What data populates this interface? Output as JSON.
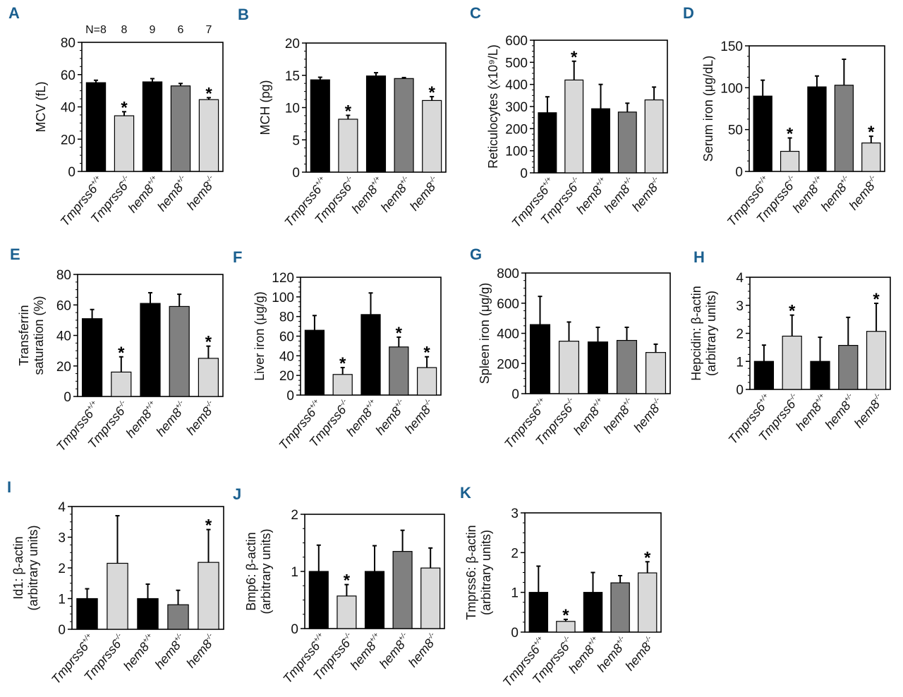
{
  "figure": {
    "categories": [
      {
        "name": "Tmprss6",
        "sup": "+/+"
      },
      {
        "name": "Tmprss6",
        "sup": "-/-"
      },
      {
        "name": "hem8",
        "sup": "+/+"
      },
      {
        "name": "hem8",
        "sup": "+/-"
      },
      {
        "name": "hem8",
        "sup": "-/-"
      }
    ],
    "bar_colors": [
      "#000000",
      "#d9d9d9",
      "#000000",
      "#808080",
      "#d9d9d9"
    ],
    "accent_label_color": "#1a5f8f"
  },
  "chart_data": [
    {
      "panel": "A",
      "type": "bar",
      "ylabel": [
        "MCV (fL)"
      ],
      "ylim": [
        0,
        80
      ],
      "yticks": [
        0,
        20,
        40,
        60,
        80
      ],
      "values": [
        55,
        34.5,
        55.5,
        53,
        44.5
      ],
      "errors": [
        1.5,
        2.5,
        2,
        1.5,
        1.2
      ],
      "significant": [
        false,
        true,
        false,
        false,
        true
      ],
      "n_labels": [
        "N=8",
        "8",
        "9",
        "6",
        "7"
      ]
    },
    {
      "panel": "B",
      "type": "bar",
      "ylabel": [
        "MCH (pg)"
      ],
      "ylim": [
        0,
        20
      ],
      "yticks": [
        0,
        5,
        10,
        15,
        20
      ],
      "values": [
        14.3,
        8.2,
        14.9,
        14.5,
        11.1
      ],
      "errors": [
        0.4,
        0.6,
        0.5,
        0.15,
        0.6
      ],
      "significant": [
        false,
        true,
        false,
        false,
        true
      ]
    },
    {
      "panel": "C",
      "type": "bar",
      "ylabel": [
        "Reticulocytes (x10⁹/L)"
      ],
      "ylim": [
        0,
        600
      ],
      "yticks": [
        0,
        100,
        200,
        300,
        400,
        500,
        600
      ],
      "values": [
        272,
        420,
        290,
        275,
        330
      ],
      "errors": [
        72,
        85,
        110,
        40,
        58
      ],
      "significant": [
        false,
        true,
        false,
        false,
        false
      ]
    },
    {
      "panel": "D",
      "type": "bar",
      "ylabel": [
        "Serum iron (μg/dL)"
      ],
      "ylim": [
        0,
        150
      ],
      "yticks": [
        0,
        50,
        100,
        150
      ],
      "values": [
        90,
        24,
        101,
        103,
        34
      ],
      "errors": [
        19,
        16,
        13,
        31,
        8
      ],
      "significant": [
        false,
        true,
        false,
        false,
        true
      ]
    },
    {
      "panel": "E",
      "type": "bar",
      "ylabel": [
        "Transferrin",
        "saturation (%)"
      ],
      "ylim": [
        0,
        80
      ],
      "yticks": [
        0,
        20,
        40,
        60,
        80
      ],
      "values": [
        51,
        16,
        61,
        59,
        25
      ],
      "errors": [
        6,
        10,
        7,
        8,
        8
      ],
      "significant": [
        false,
        true,
        false,
        false,
        true
      ]
    },
    {
      "panel": "F",
      "type": "bar",
      "ylabel": [
        "Liver iron (μg/g)"
      ],
      "ylim": [
        0,
        120
      ],
      "yticks": [
        0,
        20,
        40,
        60,
        80,
        100,
        120
      ],
      "values": [
        66,
        21,
        82,
        49,
        28
      ],
      "errors": [
        15,
        7,
        22,
        10,
        11
      ],
      "significant": [
        false,
        true,
        false,
        true,
        true
      ]
    },
    {
      "panel": "G",
      "type": "bar",
      "ylabel": [
        "Spleen iron (μg/g)"
      ],
      "ylim": [
        0,
        800
      ],
      "yticks": [
        0,
        200,
        400,
        600,
        800
      ],
      "values": [
        458,
        348,
        343,
        353,
        273
      ],
      "errors": [
        187,
        127,
        97,
        87,
        55
      ],
      "significant": [
        false,
        false,
        false,
        false,
        false
      ]
    },
    {
      "panel": "H",
      "type": "bar",
      "ylabel": [
        "Hepcidin: β-actin",
        "(arbitrary units)"
      ],
      "ylim": [
        0,
        4
      ],
      "yticks": [
        0,
        1,
        2,
        3,
        4
      ],
      "values": [
        1.0,
        1.9,
        1.0,
        1.57,
        2.07
      ],
      "errors": [
        0.58,
        0.75,
        0.86,
        1.0,
        1.0
      ],
      "significant": [
        false,
        true,
        false,
        false,
        true
      ]
    },
    {
      "panel": "I",
      "type": "bar",
      "ylabel": [
        "Id1: β-actin",
        "(arbitrary units)"
      ],
      "ylim": [
        0,
        4
      ],
      "yticks": [
        0,
        1,
        2,
        3,
        4
      ],
      "values": [
        1.0,
        2.15,
        1.0,
        0.8,
        2.18
      ],
      "errors": [
        0.32,
        1.55,
        0.47,
        0.47,
        1.07
      ],
      "significant": [
        false,
        false,
        false,
        false,
        true
      ]
    },
    {
      "panel": "J",
      "type": "bar",
      "ylabel": [
        "Bmp6: β-actin",
        "(arbitrary units)"
      ],
      "ylim": [
        0,
        2
      ],
      "yticks": [
        0,
        1,
        2
      ],
      "values": [
        1.0,
        0.57,
        1.0,
        1.35,
        1.06
      ],
      "errors": [
        0.46,
        0.2,
        0.45,
        0.37,
        0.35
      ],
      "significant": [
        false,
        true,
        false,
        false,
        false
      ]
    },
    {
      "panel": "K",
      "type": "bar",
      "ylabel": [
        "Tmprss6: β-actin",
        "(arbitrary units)"
      ],
      "ylim": [
        0,
        3
      ],
      "yticks": [
        0,
        1,
        2,
        3
      ],
      "values": [
        1.0,
        0.27,
        1.0,
        1.24,
        1.49
      ],
      "errors": [
        0.66,
        0.05,
        0.5,
        0.18,
        0.28
      ],
      "significant": [
        false,
        true,
        false,
        false,
        true
      ]
    }
  ]
}
